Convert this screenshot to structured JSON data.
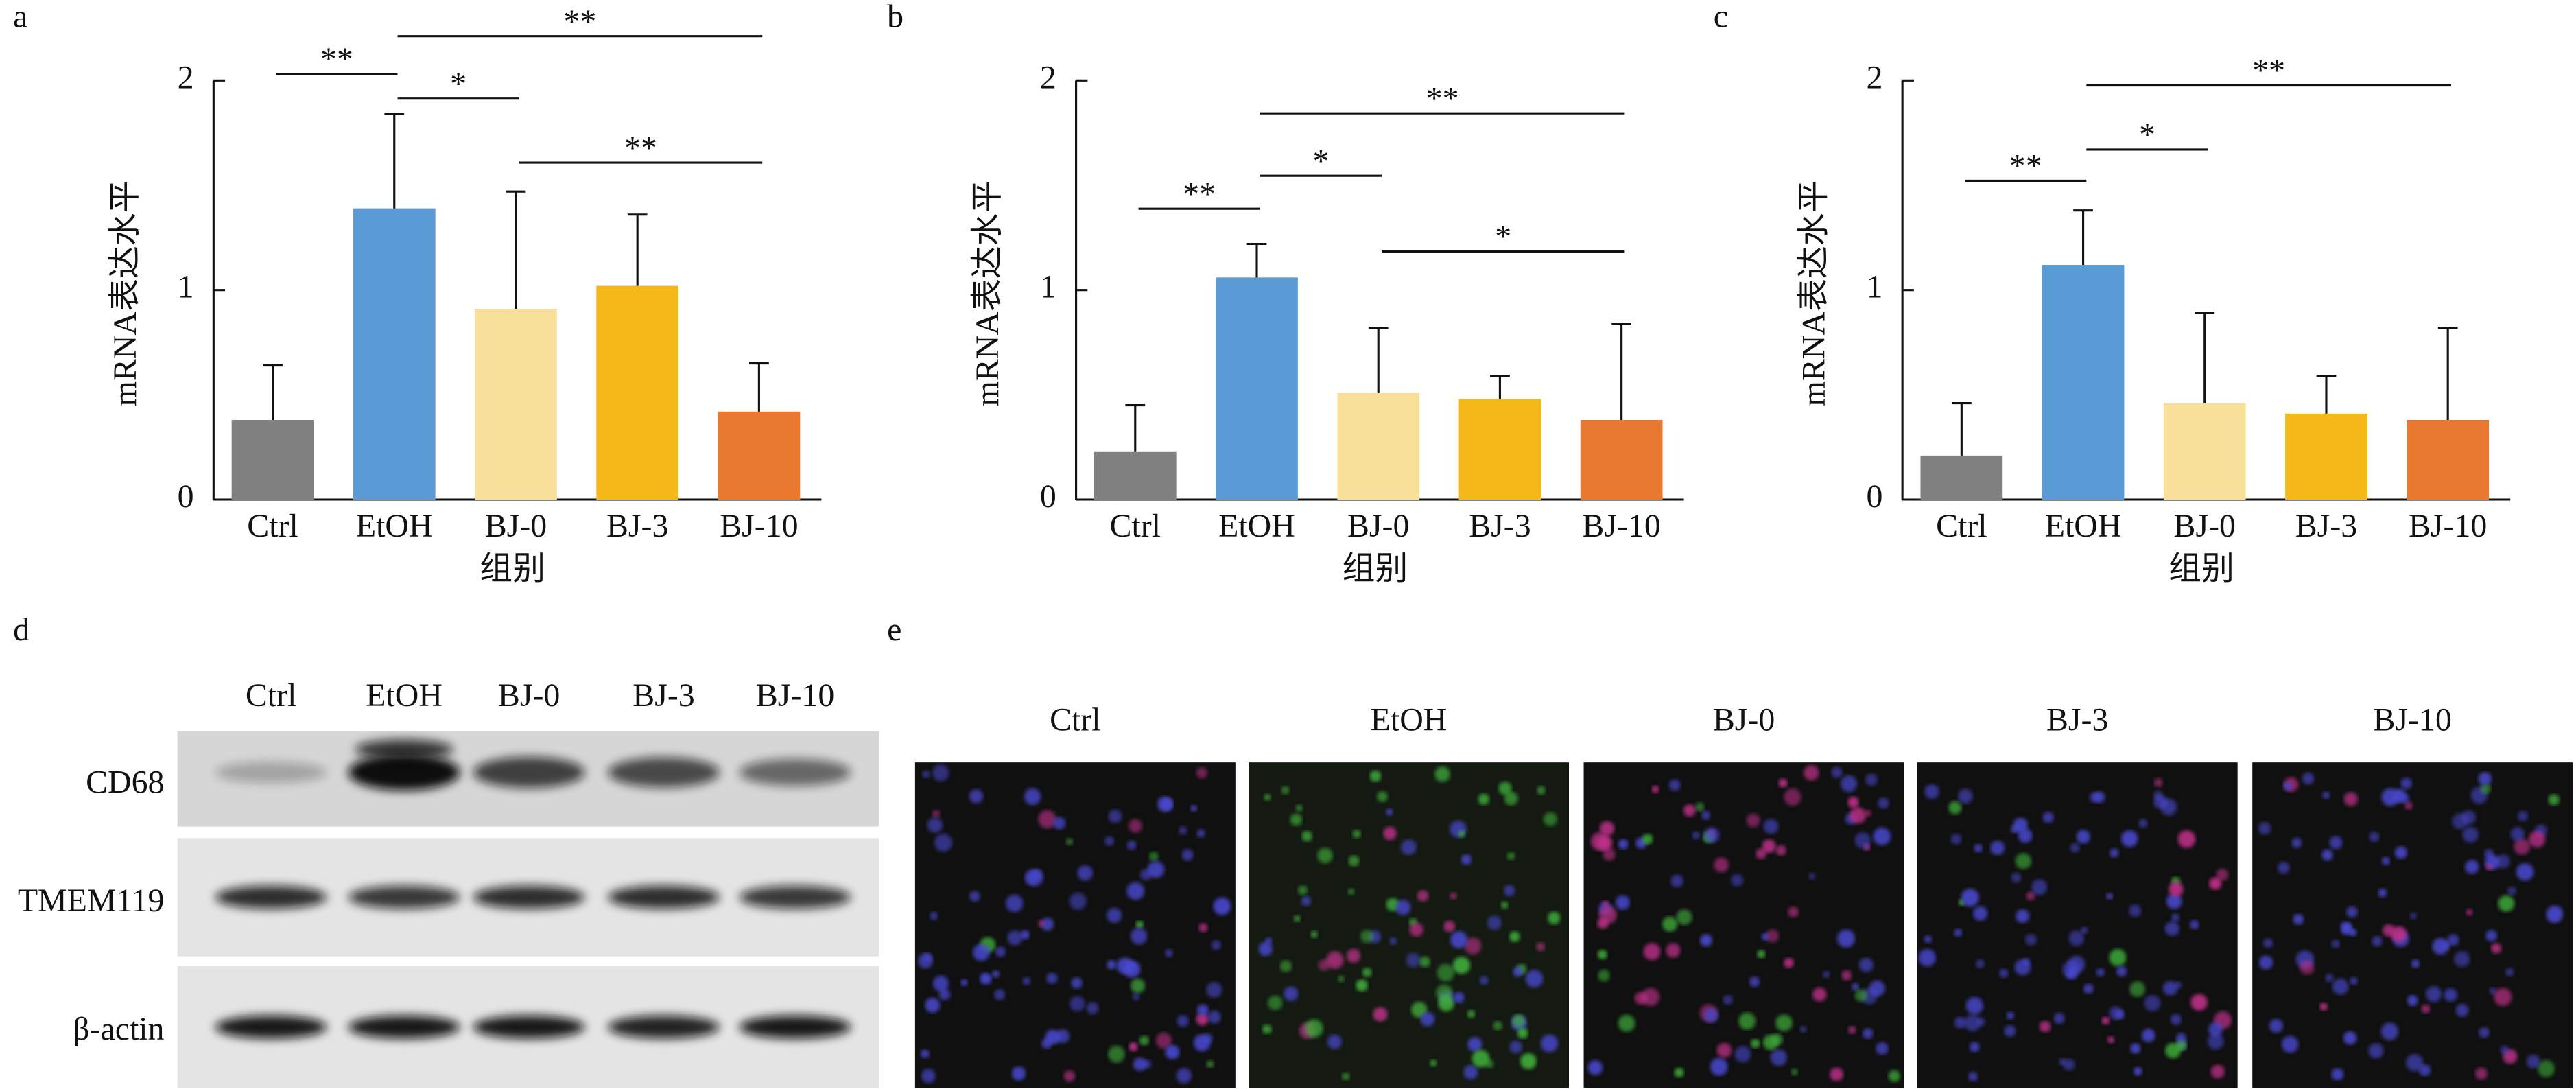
{
  "chart_data": [
    {
      "type": "bar",
      "panel": "a",
      "ylabel": "mRNA表达水平",
      "xlabel": "组别",
      "categories": [
        "Ctrl",
        "EtOH",
        "BJ-0",
        "BJ-3",
        "BJ-10"
      ],
      "values": [
        0.38,
        1.39,
        0.91,
        1.02,
        0.42
      ],
      "errors": [
        0.26,
        0.45,
        0.56,
        0.34,
        0.23
      ],
      "colors": [
        "#808080",
        "#5b9bd5",
        "#f8e09a",
        "#f4b919",
        "#e8792f"
      ],
      "ylim": [
        0,
        2
      ],
      "yticks": [
        0,
        1,
        2
      ],
      "significance": [
        {
          "between": [
            "Ctrl",
            "EtOH"
          ],
          "label": "**"
        },
        {
          "between": [
            "EtOH",
            "BJ-10"
          ],
          "label": "**"
        },
        {
          "between": [
            "EtOH",
            "BJ-0"
          ],
          "label": "*"
        },
        {
          "between": [
            "BJ-0",
            "BJ-10"
          ],
          "label": "**"
        }
      ]
    },
    {
      "type": "bar",
      "panel": "b",
      "ylabel": "mRNA表达水平",
      "xlabel": "组别",
      "categories": [
        "Ctrl",
        "EtOH",
        "BJ-0",
        "BJ-3",
        "BJ-10"
      ],
      "values": [
        0.23,
        1.06,
        0.51,
        0.48,
        0.38
      ],
      "errors": [
        0.22,
        0.16,
        0.31,
        0.11,
        0.46
      ],
      "colors": [
        "#808080",
        "#5b9bd5",
        "#f8e09a",
        "#f4b919",
        "#e8792f"
      ],
      "ylim": [
        0,
        2
      ],
      "yticks": [
        0,
        1,
        2
      ],
      "significance": [
        {
          "between": [
            "Ctrl",
            "EtOH"
          ],
          "label": "**"
        },
        {
          "between": [
            "EtOH",
            "BJ-0"
          ],
          "label": "*"
        },
        {
          "between": [
            "EtOH",
            "BJ-10"
          ],
          "label": "**"
        },
        {
          "between": [
            "BJ-0",
            "BJ-10"
          ],
          "label": "*"
        }
      ]
    },
    {
      "type": "bar",
      "panel": "c",
      "ylabel": "mRNA表达水平",
      "xlabel": "组别",
      "categories": [
        "Ctrl",
        "EtOH",
        "BJ-0",
        "BJ-3",
        "BJ-10"
      ],
      "values": [
        0.21,
        1.12,
        0.46,
        0.41,
        0.38
      ],
      "errors": [
        0.25,
        0.26,
        0.43,
        0.18,
        0.44
      ],
      "colors": [
        "#808080",
        "#5b9bd5",
        "#f8e09a",
        "#f4b919",
        "#e8792f"
      ],
      "ylim": [
        0,
        2
      ],
      "yticks": [
        0,
        1,
        2
      ],
      "significance": [
        {
          "between": [
            "Ctrl",
            "EtOH"
          ],
          "label": "**"
        },
        {
          "between": [
            "EtOH",
            "BJ-0"
          ],
          "label": "*"
        },
        {
          "between": [
            "EtOH",
            "BJ-10"
          ],
          "label": "**"
        }
      ]
    }
  ],
  "western_blot": {
    "panel": "d",
    "lanes": [
      "Ctrl",
      "EtOH",
      "BJ-0",
      "BJ-3",
      "BJ-10"
    ],
    "rows": [
      "CD68",
      "TMEM119",
      "β-actin"
    ]
  },
  "immunofluorescence": {
    "panel": "e",
    "groups": [
      "Ctrl",
      "EtOH",
      "BJ-0",
      "BJ-3",
      "BJ-10"
    ]
  }
}
